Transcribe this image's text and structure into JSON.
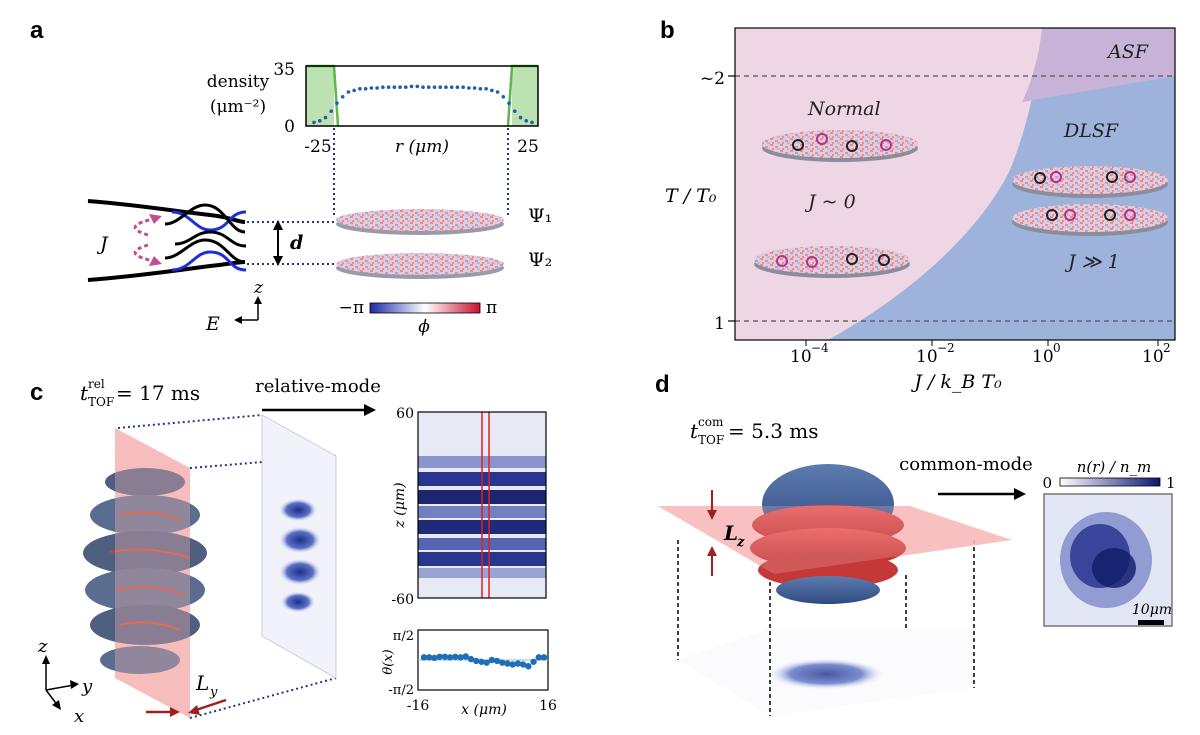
{
  "panels": {
    "a": {
      "letter": "a",
      "density_label_line1": "density",
      "density_label_line2": "(μm⁻²)",
      "y_max": "35",
      "y_min": "0",
      "x_left": "-25",
      "x_right": "25",
      "x_label": "r (μm)",
      "psi1": "Ψ₁",
      "psi2": "Ψ₂",
      "d_label": "d",
      "J_label": "J",
      "z_axis": "z",
      "E_axis": "E",
      "phase_min": "−π",
      "phase_max": "π",
      "phase_label": "ϕ",
      "profile": {
        "ymax": 35,
        "values": [
          1,
          2,
          4,
          8,
          13,
          17,
          20,
          21,
          22,
          22,
          22.5,
          22.5,
          23,
          23,
          23,
          23,
          23,
          23.5,
          23.5,
          23,
          23,
          23,
          23,
          23,
          23,
          23,
          23,
          22.5,
          22.5,
          22,
          22,
          21,
          20,
          17,
          13,
          8,
          4,
          2,
          1
        ]
      }
    },
    "b": {
      "letter": "b",
      "asf": "ASF",
      "normal": "Normal",
      "dlsf": "DLSF",
      "j_zero": "J ~ 0",
      "j_large": "J ≫ 1",
      "y_label": "T / T₀",
      "y_tick_top": "~2",
      "y_tick_bottom": "1",
      "x_label": "J / k_B T₀",
      "x_ticks": [
        {
          "base": "10",
          "exp": "−4"
        },
        {
          "base": "10",
          "exp": "−2"
        },
        {
          "base": "10",
          "exp": "0"
        },
        {
          "base": "10",
          "exp": "2"
        }
      ],
      "colors": {
        "normal": "#efd6e4",
        "dlsf": "#9db3dc",
        "asf": "#c7b3d8"
      }
    },
    "c": {
      "letter": "c",
      "t_label": "t",
      "t_sup": "rel",
      "t_sub": "TOF",
      "t_value": " = 17 ms",
      "mode": "relative-mode",
      "z_top": "60",
      "z_bottom": "-60",
      "z_label": "z (μm)",
      "theta_top": "π/2",
      "theta_bottom": "-π/2",
      "theta_label": "θ(x)",
      "x_left": "-16",
      "x_right": "16",
      "x_label": "x (μm)",
      "Ly": "L",
      "Ly_sub": "y",
      "axes": {
        "z": "z",
        "y": "y",
        "x": "x"
      },
      "theta_profile": {
        "x_range": [
          -16,
          16
        ],
        "y_range": [
          -1.5708,
          1.5708
        ],
        "values": [
          0.15,
          0.15,
          0.12,
          0.18,
          0.18,
          0.15,
          0.18,
          0.15,
          0.2,
          0.05,
          -0.05,
          -0.1,
          -0.15,
          0.0,
          -0.05,
          -0.15,
          -0.2,
          -0.25,
          -0.2,
          -0.25,
          -0.35,
          -0.1,
          0.15,
          0.15
        ]
      }
    },
    "d": {
      "letter": "d",
      "t_label": "t",
      "t_sup": "com",
      "t_sub": "TOF",
      "t_value": " = 5.3 ms",
      "mode": "common-mode",
      "Lz": "L",
      "Lz_sub": "z",
      "cb_label": "n(r) / n_m",
      "cb_min": "0",
      "cb_max": "1",
      "scale": "10μm"
    }
  }
}
